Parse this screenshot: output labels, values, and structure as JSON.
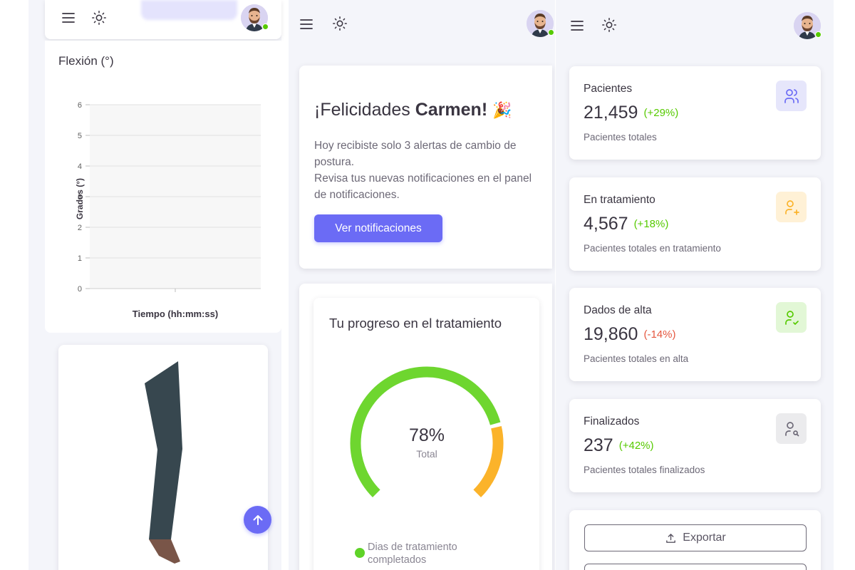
{
  "flexion_chart": {
    "chart_data": {
      "type": "line",
      "title": "Flexión (°)",
      "xlabel": "Tiempo (hh:mm:ss)",
      "ylabel": "Grados (°)",
      "ylim": [
        0,
        6
      ],
      "yticks": [
        "0",
        "1",
        "2",
        "3",
        "4",
        "5",
        "6"
      ],
      "x": [],
      "series": [],
      "grid": true
    }
  },
  "congrats": {
    "prefix": "¡Felicidades ",
    "name": "Carmen!",
    "emoji": "🎉",
    "line1": "Hoy recibiste solo 3 alertas de cambio de postura.",
    "line2": "Revisa tus nuevas notificaciones en el panel de notificaciones.",
    "button": "Ver notificaciones"
  },
  "progress": {
    "title": "Tu progreso en el tratamiento",
    "value": "78%",
    "percent": 78,
    "caption": "Total",
    "legend": "Dias de tratamiento completados",
    "colors": {
      "completed": "#6ed62f",
      "remaining": "#fbb32a"
    }
  },
  "stats": [
    {
      "label": "Pacientes",
      "value": "21,459",
      "change": "(+29%)",
      "change_color": "#56ca00",
      "caption": "Pacientes totales",
      "icon": "users-icon",
      "icon_bg": "#e6e6fb",
      "icon_color": "#6b6bf5"
    },
    {
      "label": "En tratamiento",
      "value": "4,567",
      "change": "(+18%)",
      "change_color": "#56ca00",
      "caption": "Pacientes totales en tratamiento",
      "icon": "user-plus-icon",
      "icon_bg": "#fff1d6",
      "icon_color": "#fbb32a"
    },
    {
      "label": "Dados de alta",
      "value": "19,860",
      "change": "(-14%)",
      "change_color": "#e5573f",
      "caption": "Pacientes totales en alta",
      "icon": "user-check-icon",
      "icon_bg": "#e2f7d6",
      "icon_color": "#56ca00"
    },
    {
      "label": "Finalizados",
      "value": "237",
      "change": "(+42%)",
      "change_color": "#56ca00",
      "caption": "Pacientes totales finalizados",
      "icon": "user-search-icon",
      "icon_bg": "#ebebed",
      "icon_color": "#6d6977"
    }
  ],
  "actions": {
    "export": "Exportar"
  },
  "colors": {
    "primary": "#6b6bf5",
    "background": "#f4f5fa"
  }
}
